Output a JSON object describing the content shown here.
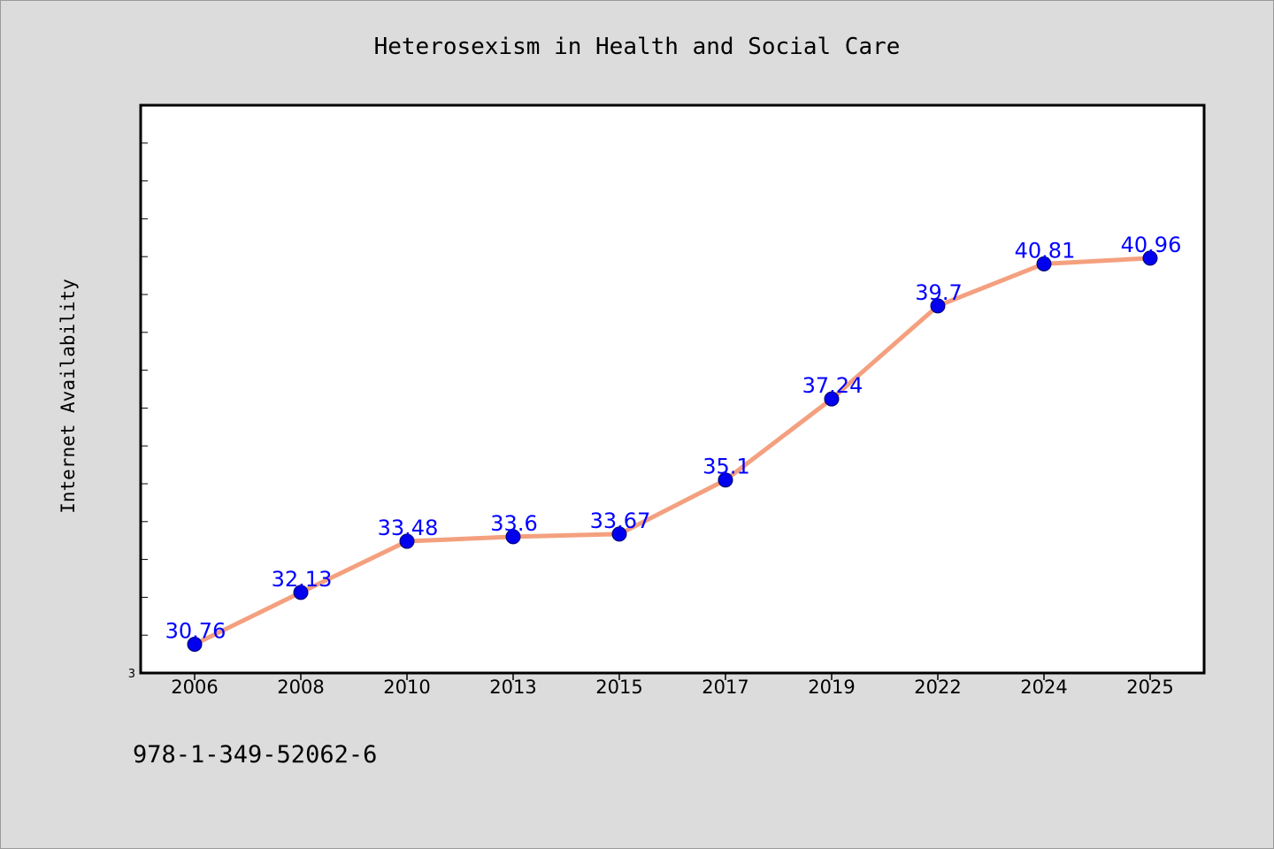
{
  "chart_data": {
    "type": "line",
    "title": "Heterosexism in Health and Social Care",
    "xlabel": "",
    "ylabel": "Internet Availability",
    "categories": [
      "2006",
      "2008",
      "2010",
      "2013",
      "2015",
      "2017",
      "2019",
      "2022",
      "2024",
      "2025"
    ],
    "series": [
      {
        "values": [
          30.76,
          32.13,
          33.48,
          33.6,
          33.67,
          35.1,
          37.24,
          39.7,
          40.81,
          40.96
        ]
      }
    ],
    "data_labels": [
      "30.76",
      "32.13",
      "33.48",
      "33.6",
      "33.67",
      "35.1",
      "37.24",
      "39.7",
      "40.81",
      "40.96"
    ],
    "y_tick_labels": [
      "3"
    ],
    "ylim": [
      30,
      45
    ],
    "grid": false,
    "legend": "none",
    "colors": {
      "line": "#f4a07f",
      "marker": "#0000ee",
      "data_label": "#0000ff",
      "plot_bg": "#ffffff",
      "page_bg": "#dcdcdc"
    }
  },
  "footer": {
    "isbn": "978-1-349-52062-6"
  }
}
